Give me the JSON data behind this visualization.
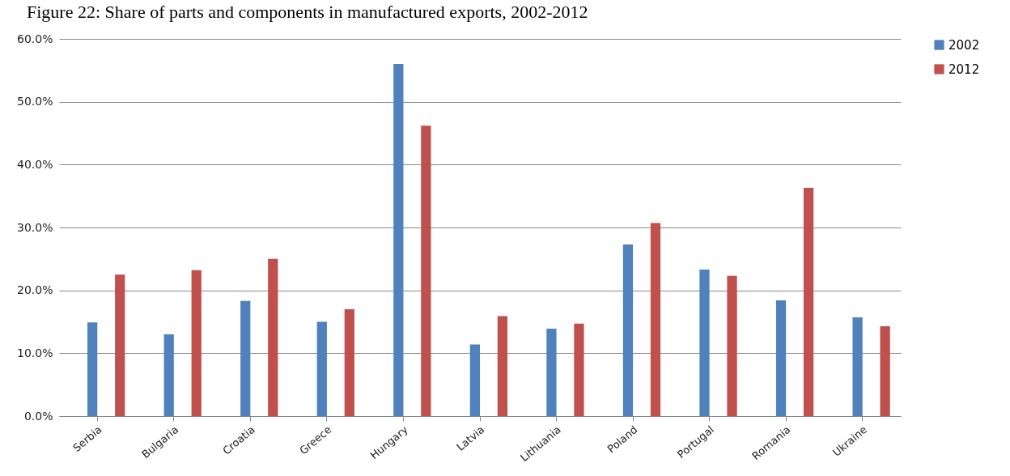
{
  "chart_data": {
    "type": "bar",
    "title": "Figure 22: Share of parts and components in manufactured exports, 2002-2012",
    "categories": [
      "Serbia",
      "Bulgaria",
      "Croatia",
      "Greece",
      "Hungary",
      "Latvia",
      "Lithuania",
      "Poland",
      "Portugal",
      "Romania",
      "Ukraine"
    ],
    "series": [
      {
        "name": "2002",
        "color": "#4f81bd",
        "values": [
          14.9,
          13.0,
          18.3,
          15.0,
          56.0,
          11.4,
          13.9,
          27.3,
          23.3,
          18.4,
          15.7
        ]
      },
      {
        "name": "2012",
        "color": "#c0504d",
        "values": [
          22.5,
          23.2,
          25.0,
          17.0,
          46.2,
          15.9,
          14.7,
          30.7,
          22.3,
          36.3,
          14.3
        ]
      }
    ],
    "ylim": [
      0,
      60
    ],
    "yticks": [
      {
        "value": 0,
        "label": "0.0%"
      },
      {
        "value": 10,
        "label": "10.0%"
      },
      {
        "value": 20,
        "label": "20.0%"
      },
      {
        "value": 30,
        "label": "30.0%"
      },
      {
        "value": 40,
        "label": "40.0%"
      },
      {
        "value": 50,
        "label": "50.0%"
      },
      {
        "value": 60,
        "label": "60.0%"
      }
    ],
    "grid": "y",
    "legend": "right"
  }
}
